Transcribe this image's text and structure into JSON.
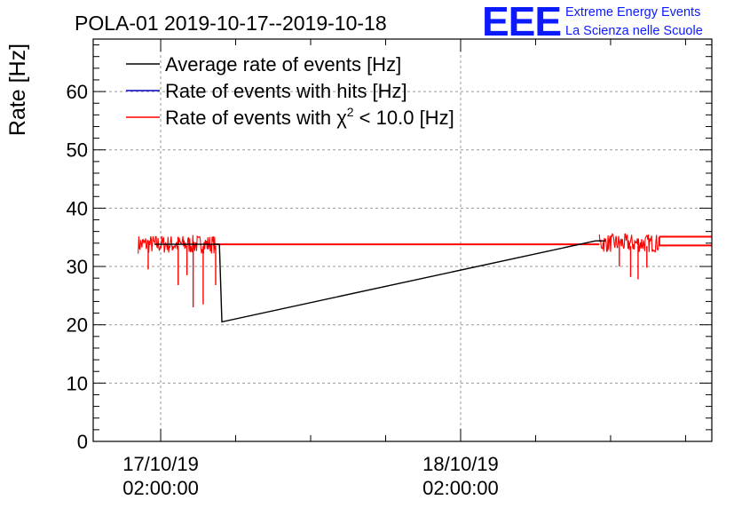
{
  "chart_data": {
    "type": "line",
    "title": "POLA-01 2019-10-17--2019-10-18",
    "xlabel": "",
    "ylabel": "Rate [Hz]",
    "ylim": [
      0,
      69
    ],
    "xlim_hours": [
      0,
      49.5
    ],
    "yticks": [
      0,
      10,
      20,
      30,
      40,
      50,
      60
    ],
    "grid": true,
    "legend_position": "top-left",
    "xticks": [
      {
        "hours": 5.4,
        "date": "17/10/19",
        "time": "02:00:00"
      },
      {
        "hours": 29.4,
        "date": "18/10/19",
        "time": "02:00:00"
      }
    ],
    "logo": {
      "mark": "EEE",
      "line1": "Extreme Energy Events",
      "line2": "La Scienza nelle Scuole"
    },
    "series": [
      {
        "name": "Average rate of events [Hz]",
        "color": "#000000",
        "x": [
          4.9,
          10.1,
          10.3,
          40.2,
          41.0
        ],
        "y": [
          33.8,
          33.8,
          20.5,
          34.4,
          34.4
        ]
      },
      {
        "name": "Rate of events with hits [Hz]",
        "color": "#0000cc",
        "x": [],
        "y": []
      },
      {
        "name": "Rate of events with χ² < 10.0 [Hz]",
        "name_parts": [
          "Rate of events with χ",
          "2",
          " < 10.0 [Hz]"
        ],
        "color": "#ff0000",
        "noise_segments": [
          {
            "x_start": 3.6,
            "x_end": 9.8,
            "baseline": 33.8
          },
          {
            "x_start": 40.5,
            "x_end": 45.3,
            "baseline": 34.0
          }
        ],
        "dips": [
          {
            "x": 4.4,
            "y": 29.5
          },
          {
            "x": 6.8,
            "y": 26.8
          },
          {
            "x": 7.5,
            "y": 28.5
          },
          {
            "x": 8.0,
            "y": 23.0
          },
          {
            "x": 8.8,
            "y": 23.5
          },
          {
            "x": 9.8,
            "y": 26.8
          },
          {
            "x": 42.1,
            "y": 30.0
          },
          {
            "x": 43.0,
            "y": 28.2
          },
          {
            "x": 43.6,
            "y": 27.8
          },
          {
            "x": 44.3,
            "y": 29.8
          }
        ],
        "flat_segments": [
          {
            "x": [
              9.8,
              40.5
            ],
            "y": 33.8
          },
          {
            "x": [
              45.3,
              49.5
            ],
            "y": 33.6
          },
          {
            "x": [
              45.3,
              49.5
            ],
            "y": 35.1
          }
        ]
      }
    ]
  }
}
